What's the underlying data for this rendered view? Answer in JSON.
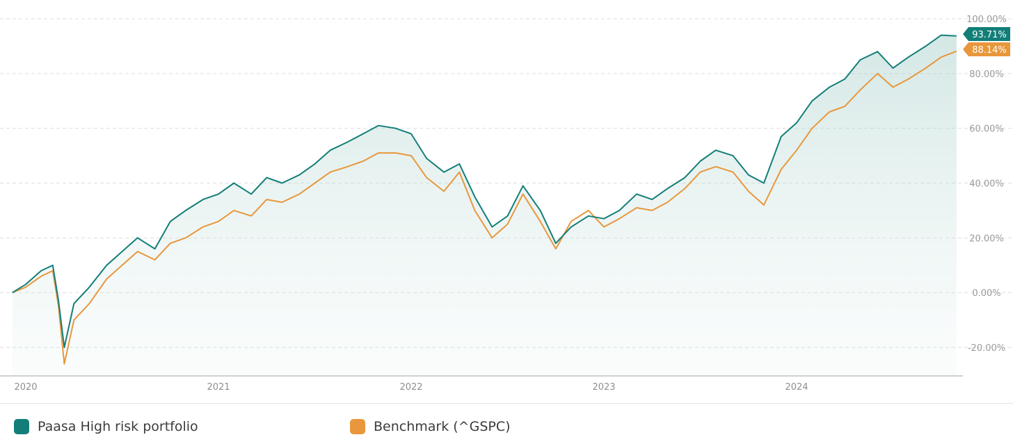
{
  "chart_data": {
    "type": "line",
    "title": "",
    "xlabel": "",
    "ylabel": "",
    "x_ticks": [
      "2020",
      "2021",
      "2022",
      "2023",
      "2024"
    ],
    "y_ticks": [
      "100.00%",
      "80.00%",
      "60.00%",
      "40.00%",
      "20.00%",
      "0.00%",
      "-20.00%"
    ],
    "ylim": [
      -30,
      102
    ],
    "xlim": [
      2019.93,
      2024.93
    ],
    "y_axis_position": "right",
    "grid": "horizontal dashed",
    "legend_position": "bottom",
    "series": [
      {
        "name": "Paasa High risk portfolio",
        "color": "#137e78",
        "last_label": "93.71%",
        "area_fill": true,
        "points": [
          [
            2019.93,
            0
          ],
          [
            2020.0,
            3
          ],
          [
            2020.08,
            8
          ],
          [
            2020.14,
            10
          ],
          [
            2020.17,
            -3
          ],
          [
            2020.2,
            -20
          ],
          [
            2020.25,
            -4
          ],
          [
            2020.33,
            2
          ],
          [
            2020.42,
            10
          ],
          [
            2020.5,
            15
          ],
          [
            2020.58,
            20
          ],
          [
            2020.67,
            16
          ],
          [
            2020.75,
            26
          ],
          [
            2020.83,
            30
          ],
          [
            2020.92,
            34
          ],
          [
            2021.0,
            36
          ],
          [
            2021.08,
            40
          ],
          [
            2021.17,
            36
          ],
          [
            2021.25,
            42
          ],
          [
            2021.33,
            40
          ],
          [
            2021.42,
            43
          ],
          [
            2021.5,
            47
          ],
          [
            2021.58,
            52
          ],
          [
            2021.67,
            55
          ],
          [
            2021.75,
            58
          ],
          [
            2021.83,
            61
          ],
          [
            2021.92,
            60
          ],
          [
            2022.0,
            58
          ],
          [
            2022.08,
            49
          ],
          [
            2022.17,
            44
          ],
          [
            2022.25,
            47
          ],
          [
            2022.33,
            35
          ],
          [
            2022.42,
            24
          ],
          [
            2022.5,
            28
          ],
          [
            2022.58,
            39
          ],
          [
            2022.67,
            30
          ],
          [
            2022.75,
            18
          ],
          [
            2022.83,
            24
          ],
          [
            2022.92,
            28
          ],
          [
            2023.0,
            27
          ],
          [
            2023.08,
            30
          ],
          [
            2023.17,
            36
          ],
          [
            2023.25,
            34
          ],
          [
            2023.33,
            38
          ],
          [
            2023.42,
            42
          ],
          [
            2023.5,
            48
          ],
          [
            2023.58,
            52
          ],
          [
            2023.67,
            50
          ],
          [
            2023.75,
            43
          ],
          [
            2023.83,
            40
          ],
          [
            2023.92,
            57
          ],
          [
            2024.0,
            62
          ],
          [
            2024.08,
            70
          ],
          [
            2024.17,
            75
          ],
          [
            2024.25,
            78
          ],
          [
            2024.33,
            85
          ],
          [
            2024.42,
            88
          ],
          [
            2024.5,
            82
          ],
          [
            2024.58,
            86
          ],
          [
            2024.67,
            90
          ],
          [
            2024.75,
            94
          ],
          [
            2024.83,
            93.71
          ]
        ]
      },
      {
        "name": "Benchmark (^GSPC)",
        "color": "#e8973c",
        "last_label": "88.14%",
        "area_fill": false,
        "points": [
          [
            2019.93,
            0
          ],
          [
            2020.0,
            2
          ],
          [
            2020.08,
            6
          ],
          [
            2020.14,
            8
          ],
          [
            2020.17,
            -5
          ],
          [
            2020.2,
            -26
          ],
          [
            2020.25,
            -10
          ],
          [
            2020.33,
            -4
          ],
          [
            2020.42,
            5
          ],
          [
            2020.5,
            10
          ],
          [
            2020.58,
            15
          ],
          [
            2020.67,
            12
          ],
          [
            2020.75,
            18
          ],
          [
            2020.83,
            20
          ],
          [
            2020.92,
            24
          ],
          [
            2021.0,
            26
          ],
          [
            2021.08,
            30
          ],
          [
            2021.17,
            28
          ],
          [
            2021.25,
            34
          ],
          [
            2021.33,
            33
          ],
          [
            2021.42,
            36
          ],
          [
            2021.5,
            40
          ],
          [
            2021.58,
            44
          ],
          [
            2021.67,
            46
          ],
          [
            2021.75,
            48
          ],
          [
            2021.83,
            51
          ],
          [
            2021.92,
            51
          ],
          [
            2022.0,
            50
          ],
          [
            2022.08,
            42
          ],
          [
            2022.17,
            37
          ],
          [
            2022.25,
            44
          ],
          [
            2022.33,
            30
          ],
          [
            2022.42,
            20
          ],
          [
            2022.5,
            25
          ],
          [
            2022.58,
            36
          ],
          [
            2022.67,
            26
          ],
          [
            2022.75,
            16
          ],
          [
            2022.83,
            26
          ],
          [
            2022.92,
            30
          ],
          [
            2023.0,
            24
          ],
          [
            2023.08,
            27
          ],
          [
            2023.17,
            31
          ],
          [
            2023.25,
            30
          ],
          [
            2023.33,
            33
          ],
          [
            2023.42,
            38
          ],
          [
            2023.5,
            44
          ],
          [
            2023.58,
            46
          ],
          [
            2023.67,
            44
          ],
          [
            2023.75,
            37
          ],
          [
            2023.83,
            32
          ],
          [
            2023.92,
            45
          ],
          [
            2024.0,
            52
          ],
          [
            2024.08,
            60
          ],
          [
            2024.17,
            66
          ],
          [
            2024.25,
            68
          ],
          [
            2024.33,
            74
          ],
          [
            2024.42,
            80
          ],
          [
            2024.5,
            75
          ],
          [
            2024.58,
            78
          ],
          [
            2024.67,
            82
          ],
          [
            2024.75,
            86
          ],
          [
            2024.83,
            88.14
          ]
        ]
      }
    ]
  },
  "legend": {
    "items": [
      {
        "label": "Paasa High risk portfolio",
        "color": "#137e78"
      },
      {
        "label": "Benchmark (^GSPC)",
        "color": "#e8973c"
      }
    ]
  }
}
